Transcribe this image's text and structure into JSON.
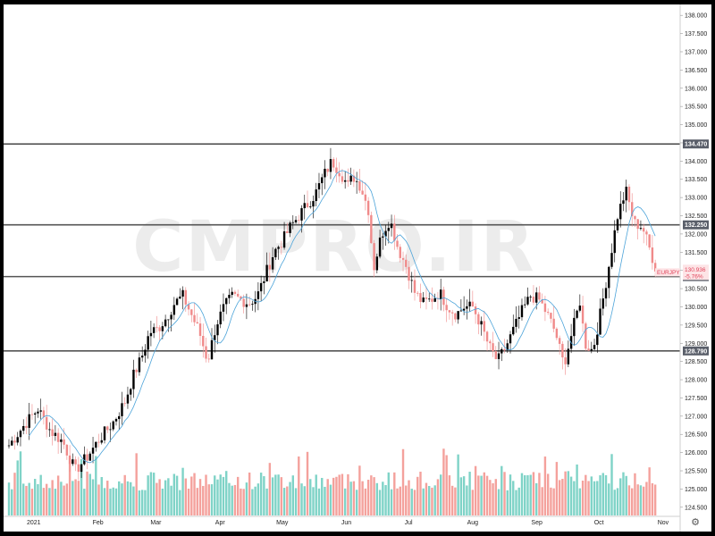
{
  "watermark": "CMPRO.IR",
  "settings_icon": "gear-icon",
  "chart_data": {
    "type": "candlestick",
    "symbol": "EURJPY",
    "last_price": "130.936",
    "change_pct": "-5.76%",
    "price_axis": {
      "range": [
        124.25,
        138.25
      ],
      "ticks": [
        "138.000",
        "137.500",
        "137.000",
        "136.500",
        "136.000",
        "135.500",
        "135.000",
        "134.500",
        "134.000",
        "133.500",
        "133.000",
        "132.500",
        "132.000",
        "131.500",
        "131.000",
        "130.500",
        "130.000",
        "129.500",
        "129.000",
        "128.500",
        "128.000",
        "127.500",
        "127.000",
        "126.500",
        "126.000",
        "125.500",
        "125.000",
        "124.500"
      ]
    },
    "horizontal_levels": [
      {
        "label": "134.470",
        "value": 134.47
      },
      {
        "label": "132.250",
        "value": 132.25
      },
      {
        "label": "130.830",
        "value": 130.83
      },
      {
        "label": "128.790",
        "value": 128.79
      }
    ],
    "x_axis": {
      "range_days": [
        0,
        313
      ],
      "labels": [
        {
          "label": "2021",
          "day": 12
        },
        {
          "label": "Feb",
          "day": 43
        },
        {
          "label": "Mar",
          "day": 71
        },
        {
          "label": "Apr",
          "day": 102
        },
        {
          "label": "May",
          "day": 132
        },
        {
          "label": "Jun",
          "day": 163
        },
        {
          "label": "Jul",
          "day": 193
        },
        {
          "label": "Aug",
          "day": 224
        },
        {
          "label": "Sep",
          "day": 255
        },
        {
          "label": "Oct",
          "day": 285
        },
        {
          "label": "Nov",
          "day": 316
        }
      ]
    },
    "colors": {
      "up": "#000000",
      "down": "#f08a8a",
      "ma": "#4ba3d9",
      "vol_up": "#7fd3c7",
      "vol_down": "#f4a19c",
      "level": "#555555",
      "level_tag": "#5a5f6a",
      "sym_tag": "#fde4e6"
    },
    "close_keypoints": [
      [
        0,
        126.2
      ],
      [
        8,
        126.8
      ],
      [
        14,
        127.2
      ],
      [
        20,
        126.6
      ],
      [
        26,
        126.3
      ],
      [
        32,
        125.5
      ],
      [
        38,
        125.9
      ],
      [
        44,
        126.4
      ],
      [
        50,
        126.8
      ],
      [
        56,
        127.4
      ],
      [
        60,
        128.1
      ],
      [
        64,
        128.6
      ],
      [
        68,
        129.3
      ],
      [
        72,
        129.4
      ],
      [
        76,
        129.7
      ],
      [
        80,
        130.1
      ],
      [
        84,
        130.3
      ],
      [
        88,
        129.8
      ],
      [
        92,
        129.3
      ],
      [
        96,
        128.5
      ],
      [
        100,
        129.5
      ],
      [
        104,
        130.0
      ],
      [
        108,
        130.3
      ],
      [
        112,
        130.2
      ],
      [
        116,
        130.1
      ],
      [
        120,
        130.3
      ],
      [
        124,
        130.9
      ],
      [
        128,
        131.5
      ],
      [
        132,
        131.8
      ],
      [
        136,
        132.2
      ],
      [
        140,
        132.5
      ],
      [
        144,
        132.8
      ],
      [
        148,
        133.1
      ],
      [
        152,
        133.6
      ],
      [
        156,
        134.0
      ],
      [
        160,
        133.7
      ],
      [
        164,
        133.3
      ],
      [
        166,
        133.6
      ],
      [
        170,
        133.3
      ],
      [
        174,
        132.6
      ],
      [
        176,
        131.0
      ],
      [
        180,
        132.0
      ],
      [
        184,
        132.4
      ],
      [
        188,
        131.6
      ],
      [
        192,
        131.1
      ],
      [
        196,
        130.4
      ],
      [
        200,
        130.1
      ],
      [
        204,
        130.2
      ],
      [
        208,
        130.4
      ],
      [
        212,
        130.0
      ],
      [
        216,
        129.8
      ],
      [
        220,
        130.0
      ],
      [
        224,
        130.0
      ],
      [
        228,
        129.5
      ],
      [
        232,
        128.9
      ],
      [
        236,
        128.5
      ],
      [
        240,
        128.9
      ],
      [
        244,
        129.4
      ],
      [
        248,
        129.9
      ],
      [
        252,
        130.3
      ],
      [
        256,
        130.2
      ],
      [
        260,
        129.8
      ],
      [
        264,
        129.3
      ],
      [
        268,
        128.4
      ],
      [
        272,
        129.3
      ],
      [
        276,
        130.2
      ],
      [
        278,
        129.0
      ],
      [
        282,
        128.8
      ],
      [
        286,
        129.9
      ],
      [
        290,
        131.2
      ],
      [
        294,
        132.5
      ],
      [
        298,
        133.2
      ],
      [
        302,
        132.3
      ],
      [
        306,
        132.2
      ],
      [
        310,
        131.5
      ],
      [
        313,
        130.94
      ]
    ],
    "volume_relative_range": [
      0,
      1
    ]
  }
}
